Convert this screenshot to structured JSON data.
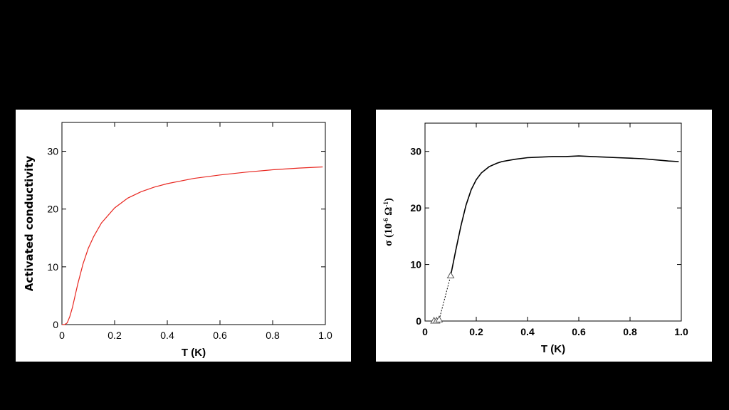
{
  "chart_data": [
    {
      "type": "line",
      "title": "",
      "xlabel": "T (K)",
      "ylabel": "Activated conductivity",
      "xlim": [
        0,
        1.0
      ],
      "ylim": [
        0,
        35
      ],
      "xticks": [
        0,
        0.2,
        0.4,
        0.6,
        0.8,
        1.0
      ],
      "xtick_labels": [
        "0",
        "0.2",
        "0.4",
        "0.6",
        "0.8",
        "1.0"
      ],
      "yticks": [
        0,
        10,
        20,
        30
      ],
      "ytick_labels": [
        "0",
        "10",
        "20",
        "30"
      ],
      "grid": false,
      "series": [
        {
          "color": "#e8261f",
          "x": [
            0.0,
            0.01,
            0.02,
            0.03,
            0.04,
            0.05,
            0.06,
            0.08,
            0.1,
            0.12,
            0.15,
            0.2,
            0.25,
            0.3,
            0.35,
            0.4,
            0.5,
            0.6,
            0.7,
            0.8,
            0.9,
            0.99
          ],
          "y": [
            0.0,
            0.0,
            0.3,
            1.4,
            3.0,
            5.0,
            7.0,
            10.5,
            13.2,
            15.2,
            17.6,
            20.2,
            21.9,
            23.0,
            23.8,
            24.4,
            25.3,
            25.9,
            26.4,
            26.8,
            27.1,
            27.3
          ]
        }
      ]
    },
    {
      "type": "line",
      "title": "",
      "xlabel": "T (K)",
      "ylabel": {
        "base": "σ (10",
        "exp1": "-6",
        "mid": " Ω",
        "exp2": "-1",
        "end": ")"
      },
      "xlim": [
        0,
        1.0
      ],
      "ylim": [
        0,
        35
      ],
      "xticks": [
        0,
        0.2,
        0.4,
        0.6,
        0.8,
        1.0
      ],
      "xtick_labels": [
        "0",
        "0.2",
        "0.4",
        "0.6",
        "0.8",
        "1.0"
      ],
      "yticks": [
        0,
        10,
        20,
        30
      ],
      "ytick_labels": [
        "0",
        "10",
        "20",
        "30"
      ],
      "grid": false,
      "series": [
        {
          "style": "solid",
          "color": "#000000",
          "x": [
            0.1,
            0.12,
            0.14,
            0.16,
            0.18,
            0.2,
            0.22,
            0.25,
            0.28,
            0.3,
            0.35,
            0.4,
            0.45,
            0.5,
            0.55,
            0.6,
            0.65,
            0.7,
            0.75,
            0.8,
            0.85,
            0.9,
            0.95,
            0.99
          ],
          "y": [
            8.0,
            12.5,
            16.8,
            20.5,
            23.2,
            25.0,
            26.2,
            27.3,
            27.9,
            28.2,
            28.6,
            28.9,
            29.0,
            29.1,
            29.1,
            29.2,
            29.1,
            29.0,
            28.9,
            28.8,
            28.7,
            28.5,
            28.3,
            28.2
          ]
        },
        {
          "style": "dotted",
          "color": "#000000",
          "marker": "triangle",
          "x": [
            0.035,
            0.045,
            0.055,
            0.1
          ],
          "y": [
            0.0,
            0.0,
            0.2,
            8.0
          ]
        }
      ]
    }
  ]
}
